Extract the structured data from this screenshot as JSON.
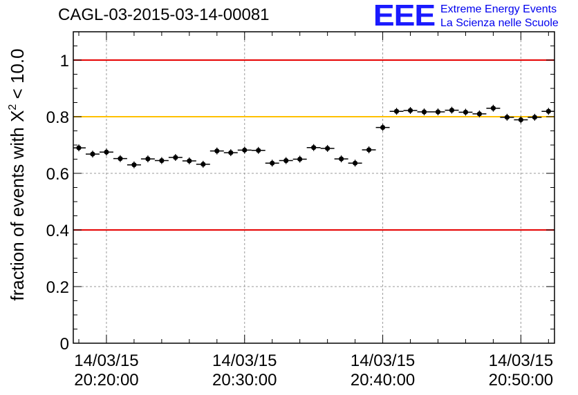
{
  "title": "CAGL-03-2015-03-14-00081",
  "logo": {
    "mark": "EEE",
    "line1": "Extreme Energy Events",
    "line2": "La Scienza nelle Scuole"
  },
  "colors": {
    "red_line": "#e60000",
    "yellow_line": "#ffc000",
    "points": "#000000",
    "grid": "#999999",
    "logo": "#1a1aff"
  },
  "chart_data": {
    "type": "scatter",
    "title": "CAGL-03-2015-03-14-00081",
    "ylabel": "fraction of events with χ² < 10.0",
    "ylabel_parts": {
      "pre": "fraction of events with ",
      "sym": "X",
      "sup": "2",
      "post": " < 10.0"
    },
    "xlabel": "",
    "x_is_time": true,
    "xlim": [
      "20:17:36",
      "20:52:26"
    ],
    "ylim": [
      0,
      1.1
    ],
    "grid": true,
    "y_ticks": [
      {
        "value": 0,
        "label": "0"
      },
      {
        "value": 0.2,
        "label": "0.2"
      },
      {
        "value": 0.4,
        "label": "0.4"
      },
      {
        "value": 0.6,
        "label": "0.6"
      },
      {
        "value": 0.8,
        "label": "0.8"
      },
      {
        "value": 1,
        "label": "1"
      }
    ],
    "x_ticks": [
      {
        "time": "20:20:00",
        "date": "14/03/15",
        "label": "20:20:00"
      },
      {
        "time": "20:30:00",
        "date": "14/03/15",
        "label": "20:30:00"
      },
      {
        "time": "20:40:00",
        "date": "14/03/15",
        "label": "20:40:00"
      },
      {
        "time": "20:50:00",
        "date": "14/03/15",
        "label": "20:50:00"
      }
    ],
    "reference_lines": [
      {
        "y": 1.0,
        "color": "#e60000"
      },
      {
        "y": 0.8,
        "color": "#ffc000"
      },
      {
        "y": 0.4,
        "color": "#e60000"
      }
    ],
    "bin_width_seconds": 60,
    "series": [
      {
        "x": [
          "20:18:00",
          "20:19:00",
          "20:20:00",
          "20:21:00",
          "20:22:00",
          "20:23:00",
          "20:24:00",
          "20:25:00",
          "20:26:00",
          "20:27:00",
          "20:28:00",
          "20:29:00",
          "20:30:00",
          "20:31:00",
          "20:32:00",
          "20:33:00",
          "20:34:00",
          "20:35:00",
          "20:36:00",
          "20:37:00",
          "20:38:00",
          "20:39:00",
          "20:40:00",
          "20:41:00",
          "20:42:00",
          "20:43:00",
          "20:44:00",
          "20:45:00",
          "20:46:00",
          "20:47:00",
          "20:48:00",
          "20:49:00",
          "20:50:00",
          "20:51:00",
          "20:52:00"
        ],
        "values": [
          0.69,
          0.668,
          0.675,
          0.652,
          0.63,
          0.651,
          0.645,
          0.656,
          0.644,
          0.632,
          0.679,
          0.673,
          0.682,
          0.681,
          0.636,
          0.645,
          0.65,
          0.691,
          0.688,
          0.651,
          0.636,
          0.683,
          0.762,
          0.819,
          0.822,
          0.817,
          0.817,
          0.823,
          0.816,
          0.81,
          0.83,
          0.798,
          0.789,
          0.798,
          0.819
        ]
      }
    ]
  }
}
